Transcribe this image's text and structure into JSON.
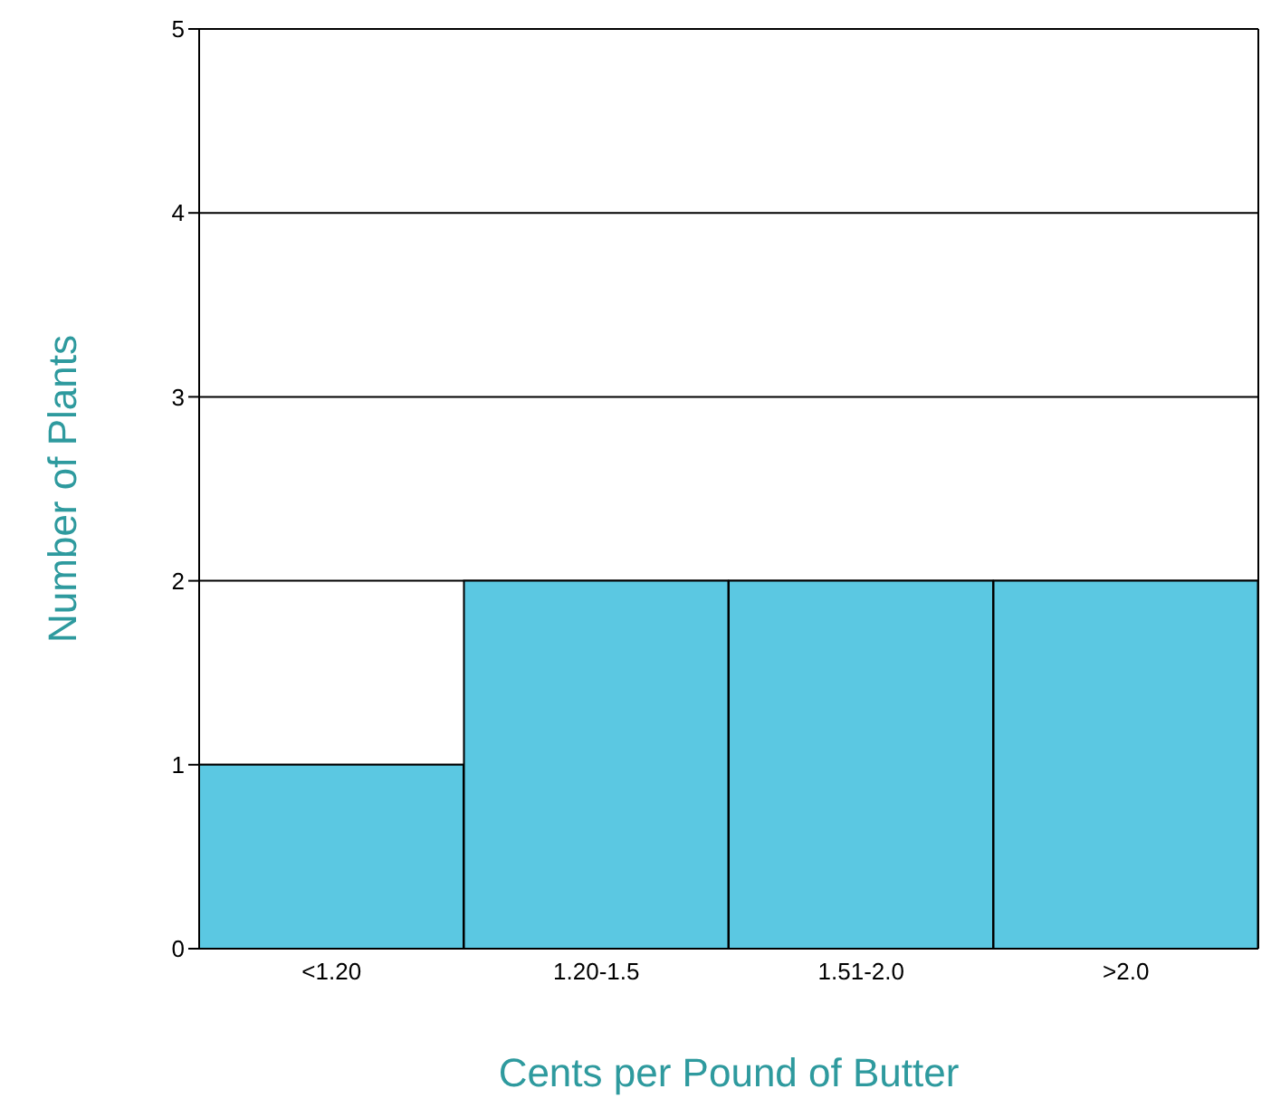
{
  "chart_data": {
    "type": "bar",
    "xlabel": "Cents per Pound of Butter",
    "ylabel": "Number of Plants",
    "categories": [
      "<1.20",
      "1.20-1.5",
      "1.51-2.0",
      ">2.0"
    ],
    "values": [
      1,
      2,
      2,
      2
    ],
    "color": "#5bc8e2",
    "ylim": [
      0,
      5
    ],
    "yticks": [
      0,
      1,
      2,
      3,
      4,
      5
    ],
    "grid": "y",
    "legend": false
  }
}
